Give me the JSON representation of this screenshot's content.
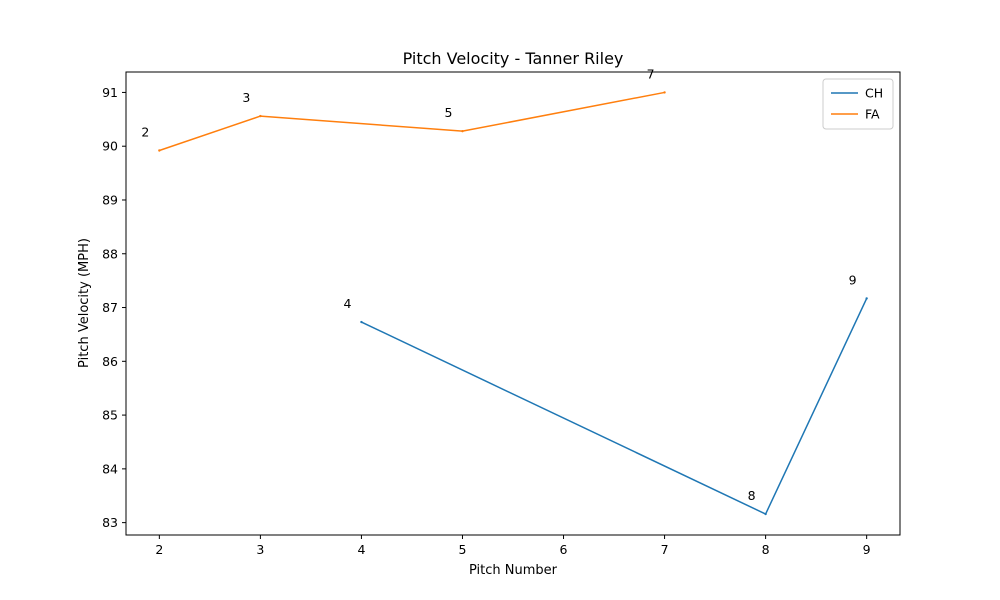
{
  "chart_data": {
    "type": "line",
    "title": "Pitch Velocity - Tanner Riley",
    "xlabel": "Pitch Number",
    "ylabel": "Pitch Velocity (MPH)",
    "xlim": [
      1.67,
      9.33
    ],
    "ylim": [
      82.77,
      91.38
    ],
    "xticks": [
      2,
      3,
      4,
      5,
      6,
      7,
      8,
      9
    ],
    "yticks": [
      83,
      84,
      85,
      86,
      87,
      88,
      89,
      90,
      91
    ],
    "grid": false,
    "legend_position": "top-right",
    "series": [
      {
        "name": "CH",
        "color": "#1f77b4",
        "points": [
          {
            "x": 4,
            "y": 86.73,
            "label": "4"
          },
          {
            "x": 8,
            "y": 83.16,
            "label": "8"
          },
          {
            "x": 9,
            "y": 87.17,
            "label": "9"
          }
        ]
      },
      {
        "name": "FA",
        "color": "#ff7f0e",
        "points": [
          {
            "x": 2,
            "y": 89.92,
            "label": "2"
          },
          {
            "x": 3,
            "y": 90.56,
            "label": "3"
          },
          {
            "x": 5,
            "y": 90.28,
            "label": "5"
          },
          {
            "x": 7,
            "y": 91.0,
            "label": "7"
          }
        ]
      }
    ]
  }
}
